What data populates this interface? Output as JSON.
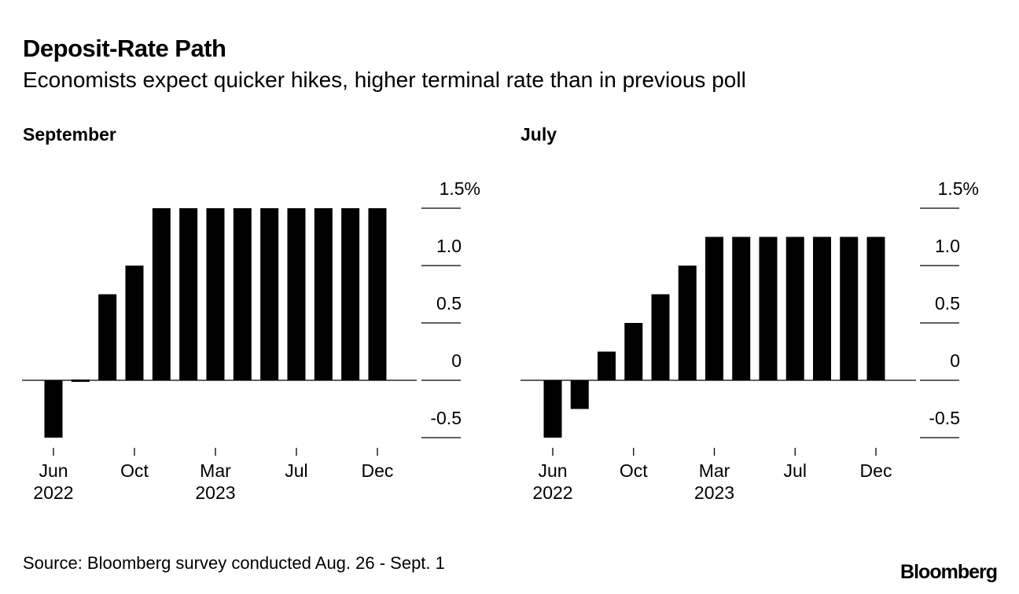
{
  "header": {
    "title": "Deposit-Rate Path",
    "subtitle": "Economists expect quicker hikes, higher terminal rate than in previous poll"
  },
  "footer": {
    "source": "Source: Bloomberg survey conducted Aug. 26 - Sept. 1",
    "logo": "Bloomberg"
  },
  "colors": {
    "bar": "#000000",
    "axis": "#000000"
  },
  "chart_data": [
    {
      "type": "bar",
      "title": "September",
      "values": [
        -0.5,
        0,
        0.75,
        1.0,
        1.5,
        1.5,
        1.5,
        1.5,
        1.5,
        1.5,
        1.5,
        1.5,
        1.5
      ],
      "x_ticks": [
        {
          "index": 0,
          "label": "Jun",
          "year": "2022"
        },
        {
          "index": 3,
          "label": "Oct",
          "year": ""
        },
        {
          "index": 6,
          "label": "Mar",
          "year": "2023"
        },
        {
          "index": 9,
          "label": "Jul",
          "year": ""
        },
        {
          "index": 12,
          "label": "Dec",
          "year": ""
        }
      ],
      "y_ticks": [
        {
          "value": 1.5,
          "label": "1.5%"
        },
        {
          "value": 1.0,
          "label": "1.0"
        },
        {
          "value": 0.5,
          "label": "0.5"
        },
        {
          "value": 0,
          "label": "0"
        },
        {
          "value": -0.5,
          "label": "-0.5"
        }
      ],
      "ylim": [
        -0.5,
        1.5
      ],
      "ylabel": "",
      "xlabel": ""
    },
    {
      "type": "bar",
      "title": "July",
      "values": [
        -0.5,
        -0.25,
        0.25,
        0.5,
        0.75,
        1.0,
        1.25,
        1.25,
        1.25,
        1.25,
        1.25,
        1.25,
        1.25
      ],
      "x_ticks": [
        {
          "index": 0,
          "label": "Jun",
          "year": "2022"
        },
        {
          "index": 3,
          "label": "Oct",
          "year": ""
        },
        {
          "index": 6,
          "label": "Mar",
          "year": "2023"
        },
        {
          "index": 9,
          "label": "Jul",
          "year": ""
        },
        {
          "index": 12,
          "label": "Dec",
          "year": ""
        }
      ],
      "y_ticks": [
        {
          "value": 1.5,
          "label": "1.5%"
        },
        {
          "value": 1.0,
          "label": "1.0"
        },
        {
          "value": 0.5,
          "label": "0.5"
        },
        {
          "value": 0,
          "label": "0"
        },
        {
          "value": -0.5,
          "label": "-0.5"
        }
      ],
      "ylim": [
        -0.5,
        1.5
      ],
      "ylabel": "",
      "xlabel": ""
    }
  ]
}
